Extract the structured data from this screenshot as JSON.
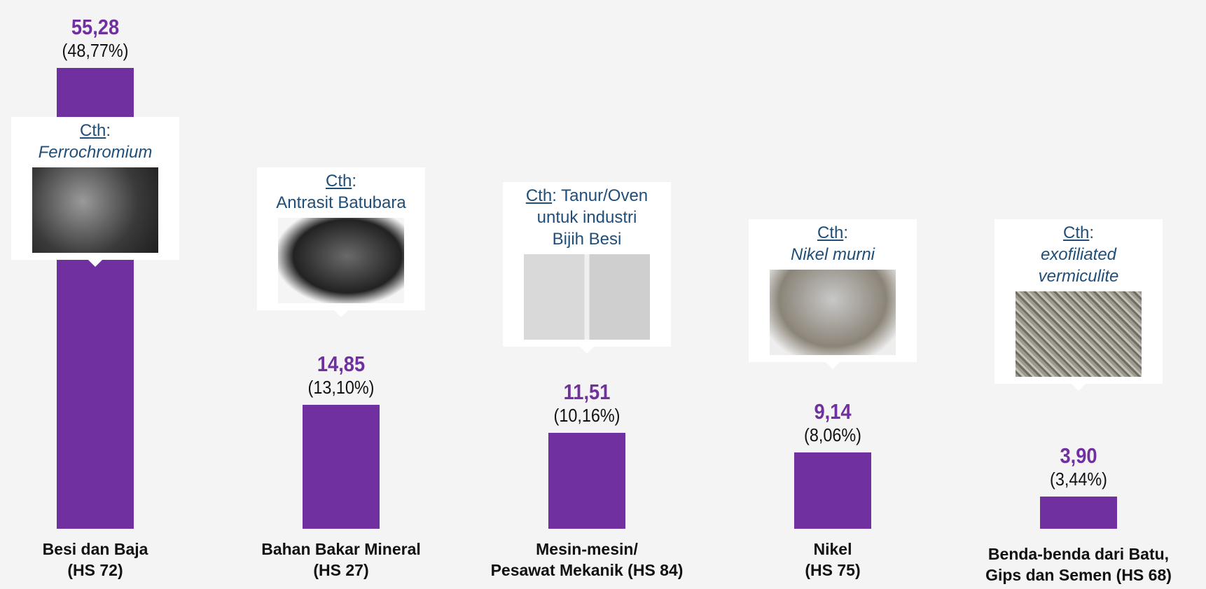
{
  "chart_data": {
    "type": "bar",
    "categories": [
      "Besi dan Baja\n(HS 72)",
      "Bahan Bakar Mineral\n(HS 27)",
      "Mesin-mesin/\nPesawat Mekanik (HS 84)",
      "Nikel\n(HS 75)",
      "Benda-benda dari Batu,\nGips dan Semen (HS 68)"
    ],
    "values": [
      55.28,
      14.85,
      11.51,
      9.14,
      3.9
    ],
    "value_labels": [
      "55,28",
      "14,85",
      "11,51",
      "9,14",
      "3,90"
    ],
    "percent_labels": [
      "(48,77%)",
      "(13,10%)",
      "(10,16%)",
      "(8,06%)",
      "(3,44%)"
    ],
    "color": "#7030a0",
    "annotations": [
      {
        "lead": "Cth",
        "after": ":",
        "text": "Ferrochromium",
        "italic": true
      },
      {
        "lead": "Cth",
        "after": ":",
        "text": "Antrasit Batubara",
        "italic": false
      },
      {
        "lead": "Cth",
        "after": ": Tanur/Oven",
        "text": "untuk industri\nBijih Besi",
        "italic": false
      },
      {
        "lead": "Cth",
        "after": ":",
        "text": "Nikel murni",
        "italic": true
      },
      {
        "lead": "Cth",
        "after": ":",
        "text": "exofiliated\nvermiculite",
        "italic": true
      }
    ]
  }
}
